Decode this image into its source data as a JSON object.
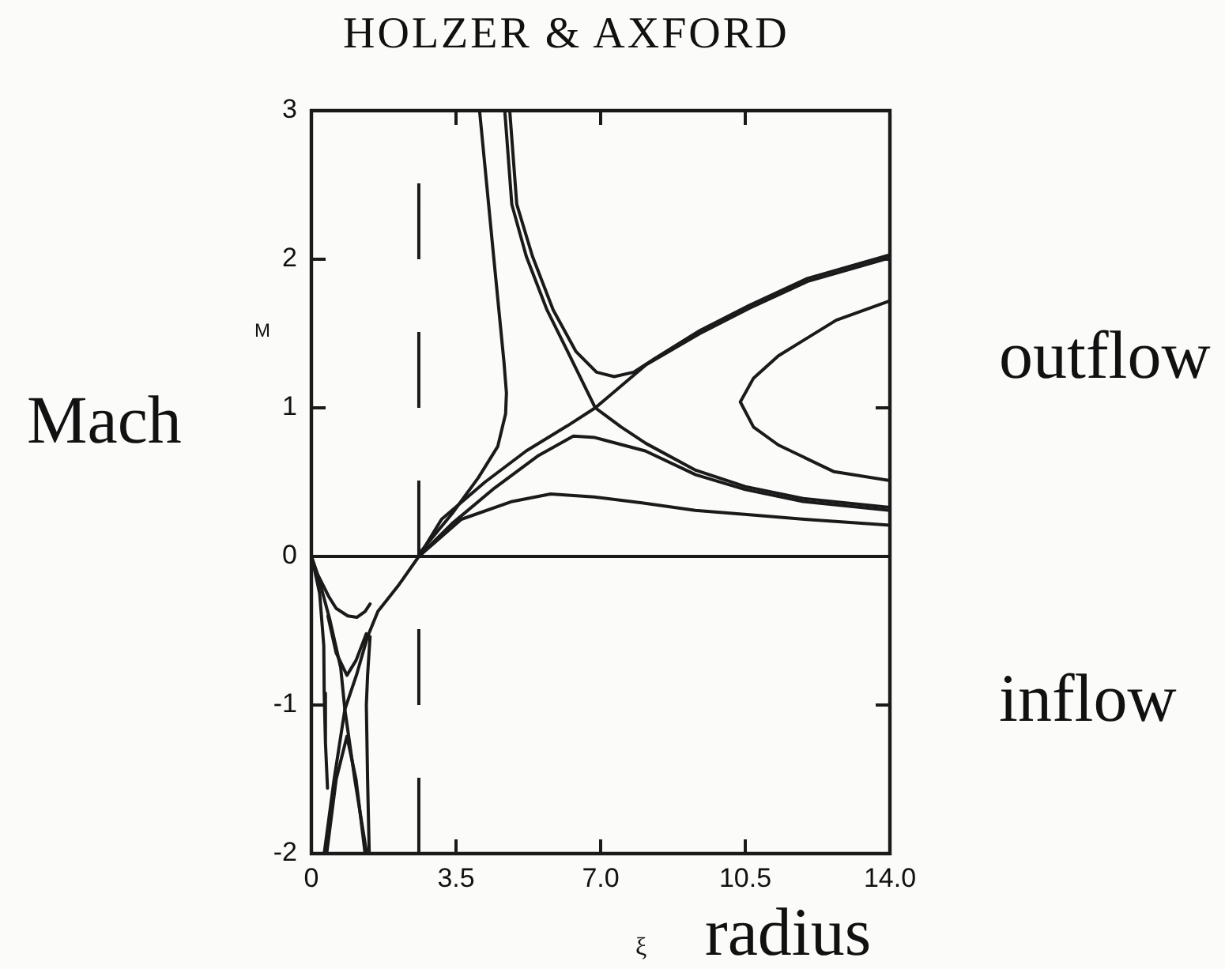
{
  "chart_data": {
    "type": "line",
    "title": "HOLZER & AXFORD",
    "xlabel": "ξ",
    "ylabel": "M",
    "annotations": [
      "Mach",
      "outflow",
      "inflow",
      "radius"
    ],
    "xlim": [
      0,
      14
    ],
    "ylim": [
      -2,
      3
    ],
    "xticks": [
      0,
      3.5,
      {
        "value": 7,
        "label": "7.0"
      },
      10.5,
      {
        "value": 14,
        "label": "14.0"
      }
    ],
    "yticks": [
      -2,
      -1,
      0,
      1,
      2,
      3
    ],
    "marker": "none",
    "line_style": "solid",
    "ref_lines": [
      {
        "axis": "y",
        "value": 0,
        "color": "#1a1a1a",
        "line_style": "solid"
      },
      {
        "axis": "x",
        "value": 2.6,
        "color": "#1a1a1a",
        "line_style": "dashed"
      }
    ],
    "series": [
      {
        "color": "#1a1a1a",
        "x": [
          0.31,
          0.55,
          0.81,
          1.1,
          1.36,
          1.61,
          2.12,
          2.6,
          3.15,
          4.2,
          5.2,
          6.2,
          6.87,
          8.1,
          9.4,
          10.6,
          12.0,
          14
        ],
        "values": [
          -2.0,
          -1.5,
          -1.03,
          -0.79,
          -0.54,
          -0.37,
          -0.19,
          0,
          0.25,
          0.5,
          0.71,
          0.88,
          1.0,
          1.29,
          1.5,
          1.67,
          1.85,
          2.01
        ]
      },
      {
        "color": "#1a1a1a",
        "x": [
          4.8,
          4.97,
          5.35,
          5.85,
          6.4,
          6.9,
          7.33,
          7.8,
          8.3,
          9.4,
          10.6,
          12.0,
          14
        ],
        "values": [
          3.0,
          2.37,
          2.02,
          1.66,
          1.38,
          1.24,
          1.21,
          1.24,
          1.33,
          1.52,
          1.69,
          1.87,
          2.03
        ]
      },
      {
        "color": "#1a1a1a",
        "x": [
          4.68,
          4.85,
          5.2,
          5.7,
          6.2,
          6.87,
          7.5,
          8.1,
          9.3,
          10.5,
          11.9,
          14
        ],
        "values": [
          3.0,
          2.37,
          2.02,
          1.66,
          1.38,
          1.0,
          0.87,
          0.76,
          0.58,
          0.47,
          0.39,
          0.33
        ]
      },
      {
        "color": "#1a1a1a",
        "x": [
          4.07,
          4.41,
          4.66,
          4.72,
          4.7,
          4.51,
          4.04,
          3.41,
          2.67,
          2.6
        ],
        "values": [
          3.0,
          2.02,
          1.31,
          1.1,
          0.96,
          0.74,
          0.53,
          0.29,
          0.04,
          0
        ]
      },
      {
        "color": "#1a1a1a",
        "x": [
          2.6,
          3.4,
          4.43,
          5.5,
          6.34,
          6.86,
          8.08,
          9.3,
          10.5,
          11.9,
          14
        ],
        "values": [
          0,
          0.22,
          0.46,
          0.68,
          0.81,
          0.8,
          0.71,
          0.55,
          0.45,
          0.37,
          0.31
        ]
      },
      {
        "color": "#1a1a1a",
        "x": [
          2.6,
          3.63,
          4.86,
          5.79,
          6.84,
          8.0,
          9.29,
          10.6,
          11.93,
          14
        ],
        "values": [
          0,
          0.25,
          0.37,
          0.42,
          0.4,
          0.36,
          0.31,
          0.28,
          0.25,
          0.21
        ]
      },
      {
        "color": "#1a1a1a",
        "x": [
          14,
          12.7,
          11.3,
          10.7,
          10.38,
          10.7,
          11.3,
          12.65,
          14
        ],
        "values": [
          1.72,
          1.59,
          1.35,
          1.2,
          1.04,
          0.87,
          0.75,
          0.57,
          0.51
        ]
      },
      {
        "color": "#1a1a1a",
        "x": [
          0,
          0.2,
          0.45,
          0.71,
          0.81,
          1.05,
          1.34
        ],
        "values": [
          0,
          -0.17,
          -0.43,
          -0.75,
          -1.03,
          -1.5,
          -2.0
        ]
      },
      {
        "color": "#1a1a1a",
        "x": [
          0,
          0.15,
          0.42,
          0.6,
          0.88,
          1.1,
          1.3,
          1.42
        ],
        "values": [
          0,
          -0.12,
          -0.27,
          -0.35,
          -0.4,
          -0.41,
          -0.37,
          -0.32
        ]
      },
      {
        "color": "#1a1a1a",
        "x": [
          0.4,
          0.6,
          0.86,
          1.08,
          1.33
        ],
        "values": [
          -0.4,
          -0.65,
          -0.8,
          -0.7,
          -0.52
        ]
      },
      {
        "color": "#1a1a1a",
        "x": [
          0.37,
          0.6,
          0.86,
          1.08,
          1.3
        ],
        "values": [
          -2.0,
          -1.5,
          -1.21,
          -1.5,
          -2.0
        ]
      },
      {
        "color": "#1a1a1a",
        "x": [
          0.03,
          0.2,
          0.3,
          0.31,
          0.34,
          0.39
        ],
        "values": [
          -0.03,
          -0.25,
          -0.6,
          -0.92,
          -1.25,
          -1.56
        ]
      },
      {
        "color": "#1a1a1a",
        "x": [
          1.42,
          1.36,
          1.33,
          1.36,
          1.4
        ],
        "values": [
          -0.54,
          -0.8,
          -1.0,
          -1.5,
          -2.0
        ]
      }
    ]
  }
}
